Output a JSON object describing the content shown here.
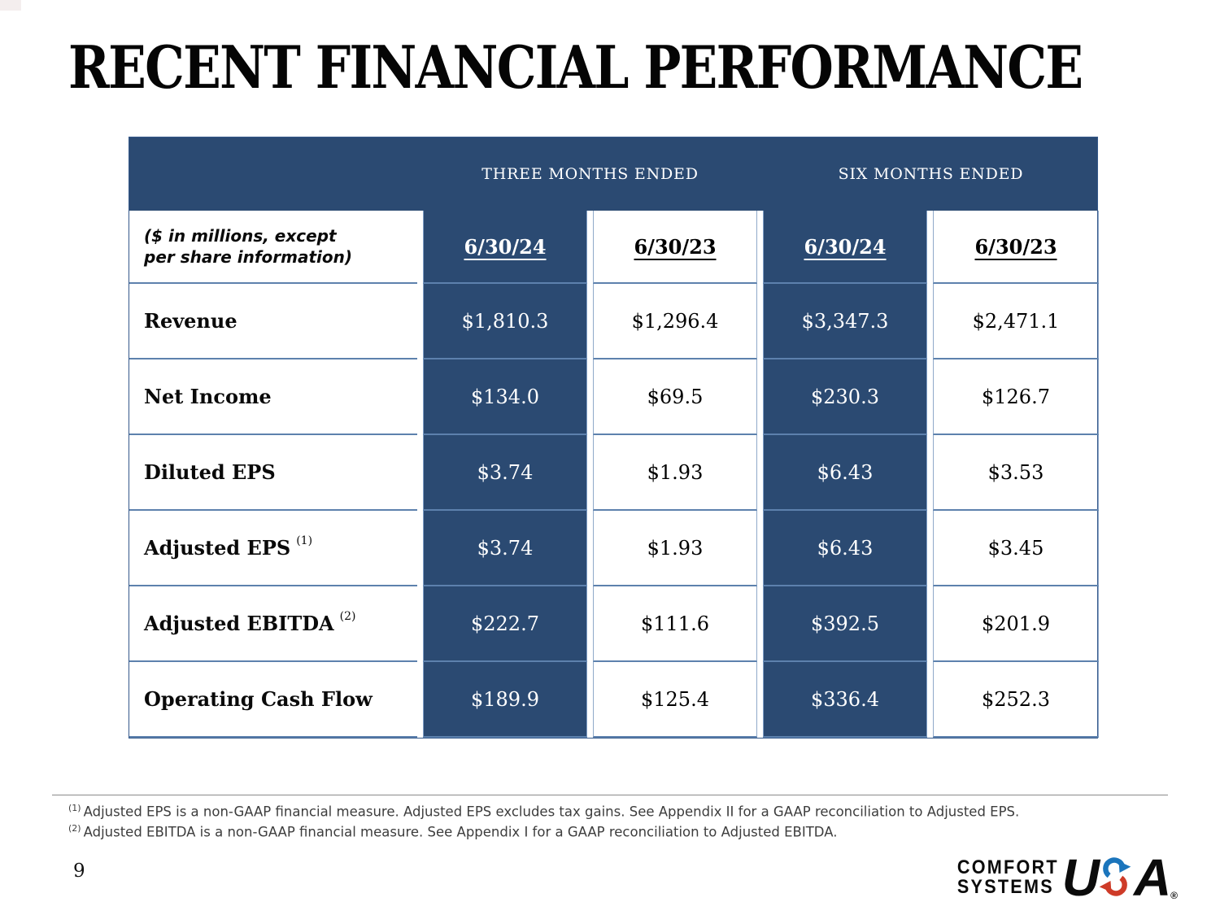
{
  "slide": {
    "title": "RECENT FINANCIAL PERFORMANCE",
    "page_number": "9"
  },
  "table": {
    "group_headers": [
      "THREE MONTHS ENDED",
      "SIX MONTHS ENDED"
    ],
    "unit_note": "($ in millions, except per share information)",
    "column_headers": [
      "6/30/24",
      "6/30/23",
      "6/30/24",
      "6/30/23"
    ],
    "rows": [
      {
        "label": "Revenue",
        "superscript": "",
        "values": [
          "$1,810.3",
          "$1,296.4",
          "$3,347.3",
          "$2,471.1"
        ]
      },
      {
        "label": "Net Income",
        "superscript": "",
        "values": [
          "$134.0",
          "$69.5",
          "$230.3",
          "$126.7"
        ]
      },
      {
        "label": "Diluted EPS",
        "superscript": "",
        "values": [
          "$3.74",
          "$1.93",
          "$6.43",
          "$3.53"
        ]
      },
      {
        "label": "Adjusted EPS",
        "superscript": "(1)",
        "values": [
          "$3.74",
          "$1.93",
          "$6.43",
          "$3.45"
        ]
      },
      {
        "label": "Adjusted EBITDA",
        "superscript": "(2)",
        "values": [
          "$222.7",
          "$111.6",
          "$392.5",
          "$201.9"
        ]
      },
      {
        "label": "Operating Cash Flow",
        "superscript": "",
        "values": [
          "$189.9",
          "$125.4",
          "$336.4",
          "$252.3"
        ]
      }
    ]
  },
  "footnotes": [
    {
      "marker": "(1)",
      "text": "Adjusted EPS is a non-GAAP financial measure.  Adjusted EPS excludes tax gains.  See Appendix II for a GAAP reconciliation to Adjusted EPS."
    },
    {
      "marker": "(2)",
      "text": "Adjusted EBITDA  is a non-GAAP financial measure.  See Appendix I for a GAAP reconciliation to Adjusted EBITDA."
    }
  ],
  "logo": {
    "line1": "COMFORT",
    "line2": "SYSTEMS",
    "usa_u": "U",
    "usa_a": "A",
    "registered": "®"
  },
  "colors": {
    "navy": "#2B4A72",
    "row_line_blue": "#5D81AD",
    "logo_blue": "#1B75BC",
    "logo_red": "#CE3B28"
  }
}
